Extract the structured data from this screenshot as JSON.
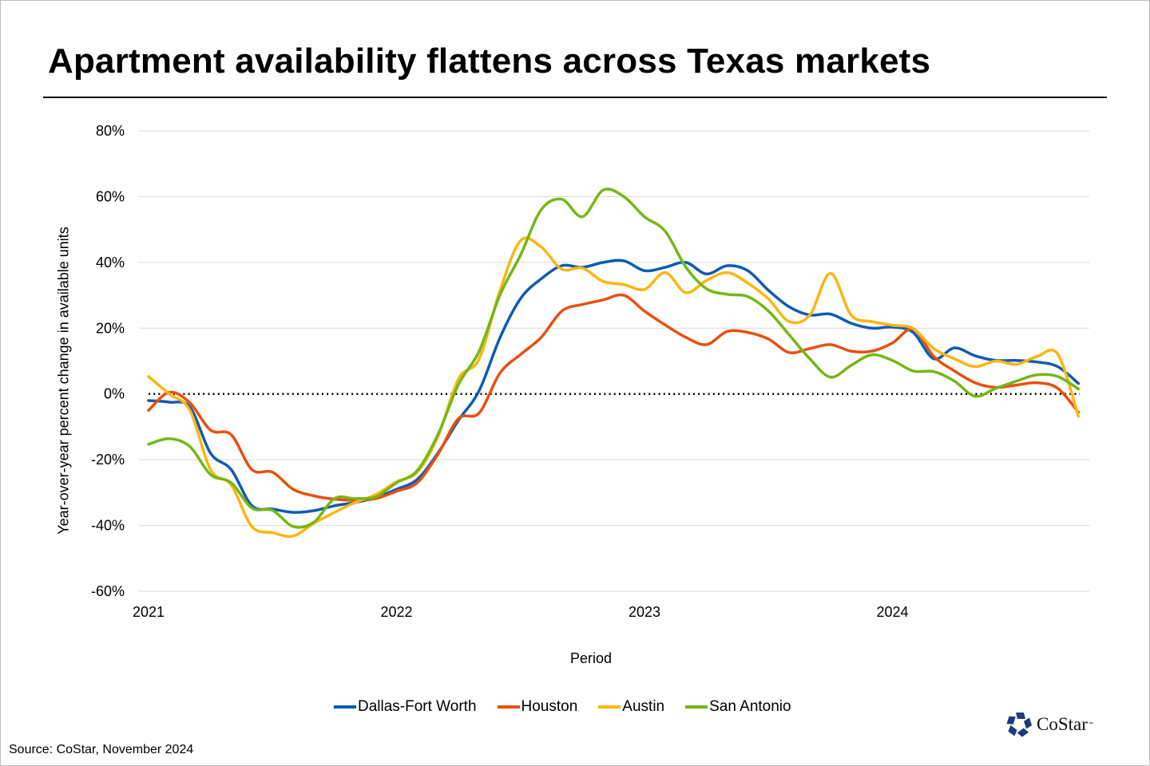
{
  "title": "Apartment availability flattens across Texas markets",
  "source": "Source: CoStar, November 2024",
  "logo": {
    "text": "CoStar",
    "tm": "™",
    "color": "#1d3a7a"
  },
  "chart_data": {
    "type": "line",
    "title": "Apartment availability flattens across Texas markets",
    "xlabel": "Period",
    "ylabel": "Year-over-year percent change in available units",
    "ylim": [
      -60,
      80
    ],
    "yticks": [
      80,
      60,
      40,
      20,
      0,
      -20,
      -40,
      -60
    ],
    "ytick_labels": [
      "80%",
      "60%",
      "40%",
      "20%",
      "0%",
      "-20%",
      "-40%",
      "-60%"
    ],
    "xticks": [
      "2021",
      "2022",
      "2023",
      "2024"
    ],
    "x_start": "2021-01",
    "x_frequency": "monthly",
    "grid": true,
    "reference_line": {
      "value": 0,
      "style": "dotted"
    },
    "legend_position": "bottom",
    "series": [
      {
        "name": "Dallas-Fort Worth",
        "color": "#0f5bb5",
        "values": [
          -2,
          -2.5,
          -4,
          -18,
          -23,
          -34,
          -35,
          -36,
          -35.5,
          -34,
          -33,
          -31.5,
          -29,
          -26,
          -18,
          -8,
          1,
          17,
          29,
          35,
          39,
          38.5,
          40,
          40.5,
          37.5,
          38.5,
          40,
          36.5,
          39,
          37.5,
          31.5,
          26.5,
          24,
          24.3,
          21.5,
          20,
          20.3,
          18.7,
          10.7,
          14,
          11.6,
          10.2,
          10.2,
          9.7,
          8.3,
          3.2
        ]
      },
      {
        "name": "Houston",
        "color": "#e8500f",
        "values": [
          -5,
          0.5,
          -2.7,
          -11,
          -12.4,
          -23,
          -23.8,
          -29,
          -31,
          -32,
          -32.3,
          -31.8,
          -29.6,
          -27,
          -18.4,
          -7.5,
          -5.8,
          6.3,
          12,
          17.2,
          25.2,
          27.2,
          28.6,
          30,
          25.2,
          21,
          17.2,
          15,
          19,
          18.7,
          16.7,
          12.6,
          13.8,
          15,
          13,
          13,
          15.5,
          19.7,
          11.4,
          7,
          3.4,
          2,
          2.7,
          3.4,
          1.7,
          -5.6
        ]
      },
      {
        "name": "Austin",
        "color": "#fbb612",
        "values": [
          5.3,
          0,
          -5,
          -23,
          -27.7,
          -40.3,
          -42.2,
          -43.2,
          -39.3,
          -36,
          -33,
          -30.6,
          -26.7,
          -23.8,
          -13,
          4.6,
          10.7,
          31.3,
          46.6,
          44.7,
          37.9,
          38.3,
          34.2,
          33.3,
          31.8,
          36.9,
          30.8,
          34.5,
          36.9,
          33.7,
          28.9,
          22,
          24,
          36.7,
          24,
          22,
          20.9,
          19.9,
          13.8,
          10.7,
          8.3,
          10,
          9,
          11.4,
          12.1,
          -6.8
        ]
      },
      {
        "name": "San Antonio",
        "color": "#74b816",
        "values": [
          -15.3,
          -13.6,
          -16,
          -24.5,
          -27,
          -34.7,
          -35.4,
          -40.3,
          -39,
          -31.8,
          -31.8,
          -31.3,
          -27,
          -23.3,
          -12.4,
          2.9,
          13,
          30,
          42.2,
          56,
          59.2,
          53.9,
          62,
          60,
          53.9,
          49.5,
          38.6,
          32,
          30.3,
          29.6,
          25.2,
          18,
          10.7,
          5.1,
          8.7,
          11.9,
          10.2,
          7,
          6.8,
          3.9,
          -0.7,
          1.7,
          3.9,
          5.8,
          5.3,
          1.5
        ]
      }
    ]
  }
}
